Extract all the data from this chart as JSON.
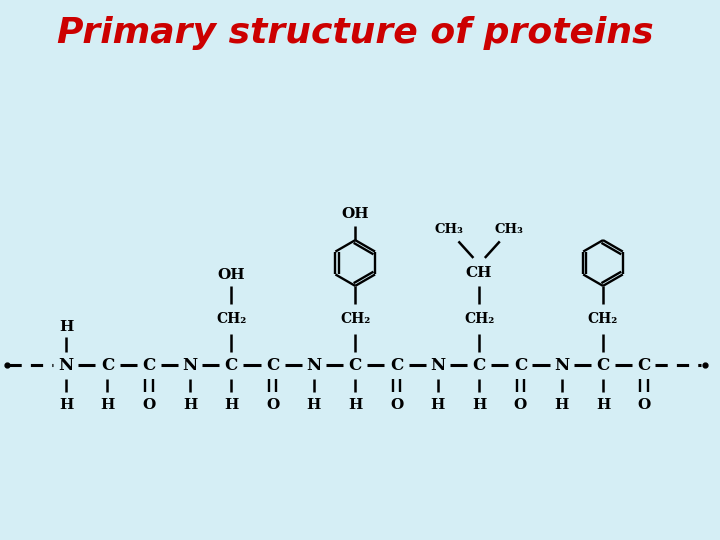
{
  "title": "Primary structure of proteins",
  "title_color": "#cc0000",
  "title_fontsize": 26,
  "bg_color": "#d5eef5",
  "text_color": "#000000",
  "chain_atoms": [
    {
      "label": "N",
      "x": 0.0
    },
    {
      "label": "C",
      "x": 1.3
    },
    {
      "label": "C",
      "x": 2.6
    },
    {
      "label": "N",
      "x": 3.9
    },
    {
      "label": "C",
      "x": 5.2
    },
    {
      "label": "C",
      "x": 6.5
    },
    {
      "label": "N",
      "x": 7.8
    },
    {
      "label": "C",
      "x": 9.1
    },
    {
      "label": "C",
      "x": 10.4
    },
    {
      "label": "N",
      "x": 11.7
    },
    {
      "label": "C",
      "x": 13.0
    },
    {
      "label": "C",
      "x": 14.3
    },
    {
      "label": "N",
      "x": 15.6
    },
    {
      "label": "C",
      "x": 16.9
    },
    {
      "label": "C",
      "x": 18.2
    }
  ],
  "double_bond_c_indices": [
    2,
    5,
    8,
    11,
    14
  ],
  "bottom_labels": [
    {
      "label": "H",
      "x": 0.0,
      "double": false
    },
    {
      "label": "H",
      "x": 1.3,
      "double": false
    },
    {
      "label": "O",
      "x": 2.6,
      "double": true
    },
    {
      "label": "H",
      "x": 3.9,
      "double": false
    },
    {
      "label": "H",
      "x": 5.2,
      "double": false
    },
    {
      "label": "O",
      "x": 6.5,
      "double": true
    },
    {
      "label": "H",
      "x": 7.8,
      "double": false
    },
    {
      "label": "H",
      "x": 9.1,
      "double": false
    },
    {
      "label": "O",
      "x": 10.4,
      "double": true
    },
    {
      "label": "H",
      "x": 11.7,
      "double": false
    },
    {
      "label": "H",
      "x": 13.0,
      "double": false
    },
    {
      "label": "O",
      "x": 14.3,
      "double": true
    },
    {
      "label": "H",
      "x": 15.6,
      "double": false
    },
    {
      "label": "H",
      "x": 16.9,
      "double": false
    },
    {
      "label": "O",
      "x": 18.2,
      "double": true
    }
  ]
}
